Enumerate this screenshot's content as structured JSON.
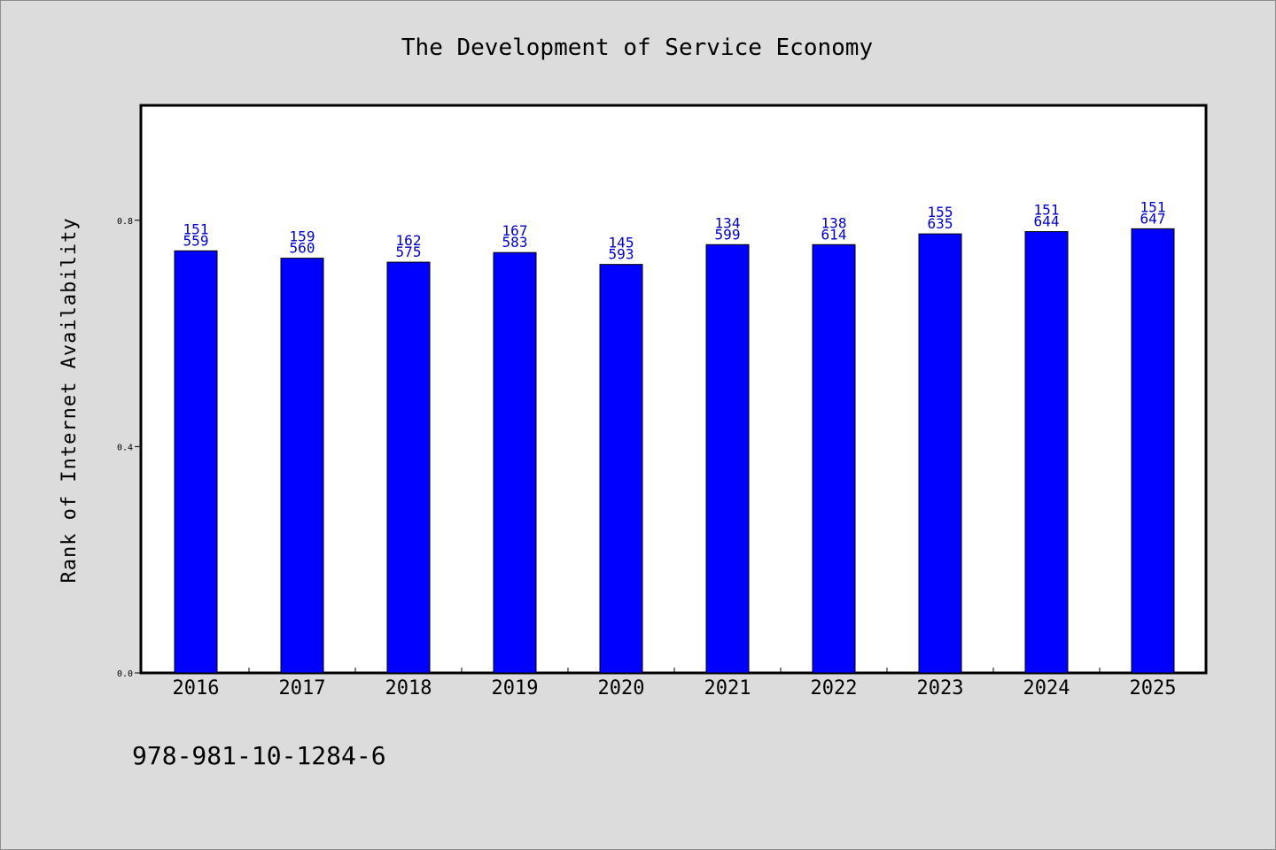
{
  "chart_data": {
    "type": "bar",
    "title": "The Development of Service Economy",
    "xlabel": "",
    "ylabel": "Rank of Internet Availability",
    "ylim": [
      0,
      1.0
    ],
    "yticks": [
      0.0,
      0.4,
      0.8
    ],
    "ytick_labels": [
      "0.0",
      "0.4",
      "0.8"
    ],
    "categories": [
      "2016",
      "2017",
      "2018",
      "2019",
      "2020",
      "2021",
      "2022",
      "2023",
      "2024",
      "2025"
    ],
    "values": [
      0.746,
      0.733,
      0.726,
      0.743,
      0.722,
      0.757,
      0.757,
      0.776,
      0.78,
      0.785
    ],
    "bar_labels_top": [
      "151",
      "159",
      "162",
      "167",
      "145",
      "134",
      "138",
      "155",
      "151",
      "151"
    ],
    "bar_labels_bottom": [
      "559",
      "560",
      "575",
      "583",
      "593",
      "599",
      "614",
      "635",
      "644",
      "647"
    ],
    "grid": false,
    "legend": "none",
    "bar_color": "#0000ff",
    "label_color": "#0000cc"
  },
  "footer_text": "978-981-10-1284-6"
}
